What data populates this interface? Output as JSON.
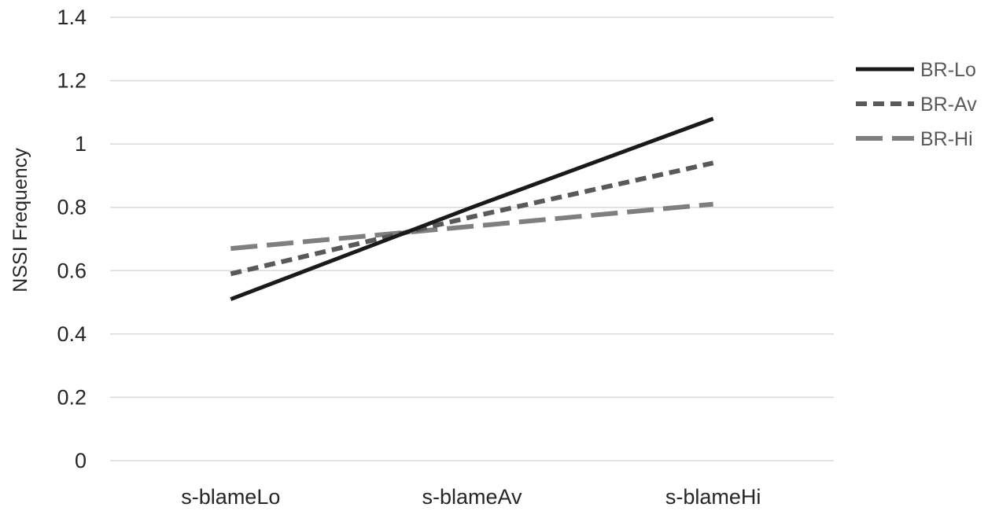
{
  "chart_data": {
    "type": "line",
    "title": "",
    "xlabel": "",
    "ylabel": "NSSI Frequency",
    "categories": [
      "s-blameLo",
      "s-blameAv",
      "s-blameHi"
    ],
    "ylim": [
      0,
      1.4
    ],
    "yticks": [
      "0",
      "0.2",
      "0.4",
      "0.6",
      "0.8",
      "1",
      "1.2",
      "1.4"
    ],
    "grid": true,
    "legend_position": "right",
    "series": [
      {
        "name": "BR-Lo",
        "values": [
          0.51,
          0.8,
          1.08
        ],
        "color": "#1a1a1a",
        "dash": "solid"
      },
      {
        "name": "BR-Av",
        "values": [
          0.59,
          0.77,
          0.94
        ],
        "color": "#595959",
        "dash": "short-dash"
      },
      {
        "name": "BR-Hi",
        "values": [
          0.67,
          0.74,
          0.81
        ],
        "color": "#7f7f7f",
        "dash": "long-dash"
      }
    ]
  }
}
